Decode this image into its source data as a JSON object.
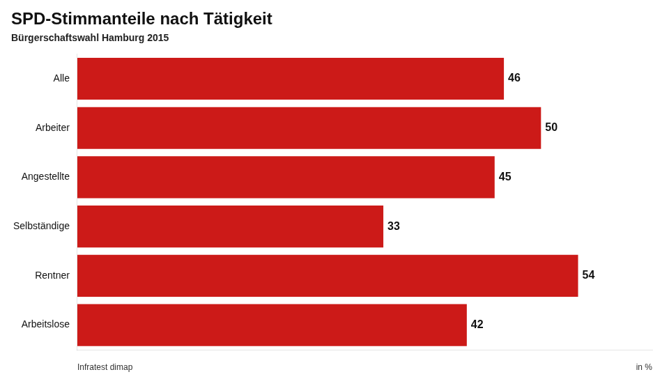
{
  "chart_data": {
    "type": "bar",
    "orientation": "horizontal",
    "title": "SPD-Stimmanteile nach Tätigkeit",
    "subtitle": "Bürgerschaftswahl Hamburg 2015",
    "categories": [
      "Alle",
      "Arbeiter",
      "Angestellte",
      "Selbständige",
      "Rentner",
      "Arbeitslose"
    ],
    "values": [
      46,
      50,
      45,
      33,
      54,
      42
    ],
    "color": "#cc1a18",
    "xlim": [
      0,
      62
    ],
    "grid": false,
    "data_labels": true,
    "tick_labels": "y",
    "annotations": [
      "Infratest dimap",
      "in %"
    ]
  }
}
